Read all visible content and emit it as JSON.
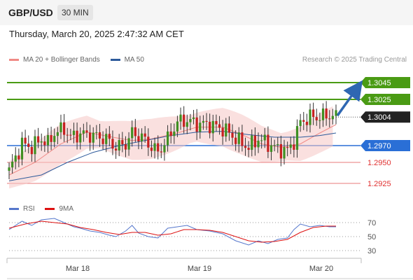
{
  "header": {
    "symbol": "GBP/USD",
    "timeframe": "30 MIN",
    "timestamp": "Thursday, March 20, 2025 2:47:32 AM CET"
  },
  "legend": {
    "main": [
      {
        "label": "MA 20 + Bollinger Bands",
        "color": "#f08a86"
      },
      {
        "label": "MA 50",
        "color": "#2d5a9b"
      }
    ],
    "rsi": [
      {
        "label": "RSI",
        "color": "#5577cc"
      },
      {
        "label": "9MA",
        "color": "#dd1111"
      }
    ],
    "source": "Research © 2025 Trading Central"
  },
  "chart_data": {
    "type": "candlestick",
    "x_ticks": [
      "Mar 18",
      "Mar 19",
      "Mar 20"
    ],
    "y_range": [
      1.291,
      1.306
    ],
    "levels": [
      {
        "value": 1.3045,
        "label": "1.3045",
        "kind": "target",
        "color": "#4a9b14"
      },
      {
        "value": 1.3025,
        "label": "1.3025",
        "kind": "target",
        "color": "#4a9b14"
      },
      {
        "value": 1.3004,
        "label": "1.3004",
        "kind": "last",
        "color": "#222222"
      },
      {
        "value": 1.297,
        "label": "1.2970",
        "kind": "pivot",
        "color": "#2a6fd6"
      },
      {
        "value": 1.295,
        "label": "1.2950",
        "kind": "support",
        "color": "#e8787a"
      },
      {
        "value": 1.2925,
        "label": "1.2925",
        "kind": "support",
        "color": "#e8787a"
      }
    ],
    "price_path": [
      [
        0,
        1.294
      ],
      [
        4,
        1.2972
      ],
      [
        7,
        1.2968
      ],
      [
        10,
        1.2978
      ],
      [
        12,
        1.2972
      ],
      [
        14,
        1.2985
      ],
      [
        17,
        1.299
      ],
      [
        19,
        1.298
      ],
      [
        22,
        1.2984
      ],
      [
        26,
        1.2982
      ],
      [
        30,
        1.2978
      ],
      [
        33,
        1.2968
      ],
      [
        36,
        1.2972
      ],
      [
        38,
        1.2985
      ],
      [
        41,
        1.298
      ],
      [
        43,
        1.2972
      ],
      [
        46,
        1.2962
      ],
      [
        49,
        1.2978
      ],
      [
        52,
        1.2998
      ],
      [
        55,
        1.3
      ],
      [
        58,
        1.2996
      ],
      [
        62,
        1.2995
      ],
      [
        66,
        1.299
      ],
      [
        68,
        1.2985
      ],
      [
        71,
        1.2975
      ],
      [
        74,
        1.2968
      ],
      [
        77,
        1.2978
      ],
      [
        80,
        1.2972
      ],
      [
        83,
        1.2966
      ],
      [
        86,
        1.2964
      ],
      [
        88,
        1.2975
      ],
      [
        90,
        1.2998
      ],
      [
        93,
        1.3004
      ],
      [
        96,
        1.3004
      ],
      [
        99,
        1.3006
      ],
      [
        101,
        1.3004
      ]
    ],
    "rsi_scale": [
      70,
      50,
      30
    ],
    "rsi_path": [
      [
        0,
        60
      ],
      [
        4,
        72
      ],
      [
        7,
        66
      ],
      [
        10,
        74
      ],
      [
        14,
        76
      ],
      [
        17,
        70
      ],
      [
        20,
        64
      ],
      [
        22,
        62
      ],
      [
        25,
        58
      ],
      [
        28,
        56
      ],
      [
        31,
        52
      ],
      [
        33,
        50
      ],
      [
        36,
        58
      ],
      [
        38,
        66
      ],
      [
        40,
        55
      ],
      [
        43,
        50
      ],
      [
        46,
        48
      ],
      [
        49,
        62
      ],
      [
        52,
        64
      ],
      [
        55,
        66
      ],
      [
        58,
        60
      ],
      [
        62,
        58
      ],
      [
        66,
        54
      ],
      [
        70,
        44
      ],
      [
        74,
        38
      ],
      [
        77,
        44
      ],
      [
        80,
        40
      ],
      [
        83,
        46
      ],
      [
        86,
        48
      ],
      [
        88,
        60
      ],
      [
        90,
        68
      ],
      [
        93,
        64
      ],
      [
        96,
        66
      ],
      [
        99,
        64
      ],
      [
        101,
        64
      ]
    ],
    "rsi_ma_path": [
      [
        0,
        62
      ],
      [
        5,
        68
      ],
      [
        10,
        72
      ],
      [
        14,
        70
      ],
      [
        18,
        68
      ],
      [
        22,
        63
      ],
      [
        26,
        60
      ],
      [
        30,
        56
      ],
      [
        34,
        53
      ],
      [
        38,
        56
      ],
      [
        42,
        56
      ],
      [
        46,
        52
      ],
      [
        50,
        54
      ],
      [
        54,
        60
      ],
      [
        58,
        60
      ],
      [
        62,
        59
      ],
      [
        66,
        56
      ],
      [
        70,
        50
      ],
      [
        74,
        44
      ],
      [
        78,
        42
      ],
      [
        82,
        43
      ],
      [
        86,
        46
      ],
      [
        90,
        56
      ],
      [
        94,
        63
      ],
      [
        98,
        65
      ],
      [
        101,
        65
      ]
    ],
    "ma20_path": [
      [
        0,
        1.2935
      ],
      [
        8,
        1.295
      ],
      [
        16,
        1.2972
      ],
      [
        24,
        1.2986
      ],
      [
        32,
        1.298
      ],
      [
        38,
        1.2976
      ],
      [
        44,
        1.2978
      ],
      [
        52,
        1.2985
      ],
      [
        58,
        1.2992
      ],
      [
        66,
        1.2992
      ],
      [
        72,
        1.2983
      ],
      [
        78,
        1.2972
      ],
      [
        84,
        1.2968
      ],
      [
        90,
        1.2972
      ],
      [
        96,
        1.2985
      ],
      [
        101,
        1.2995
      ]
    ],
    "ma50_path": [
      [
        0,
        1.2928
      ],
      [
        10,
        1.2935
      ],
      [
        18,
        1.295
      ],
      [
        26,
        1.2962
      ],
      [
        34,
        1.297
      ],
      [
        42,
        1.2976
      ],
      [
        50,
        1.2982
      ],
      [
        58,
        1.2986
      ],
      [
        66,
        1.2987
      ],
      [
        74,
        1.2983
      ],
      [
        82,
        1.298
      ],
      [
        90,
        1.298
      ],
      [
        96,
        1.2982
      ],
      [
        101,
        1.2985
      ]
    ]
  }
}
